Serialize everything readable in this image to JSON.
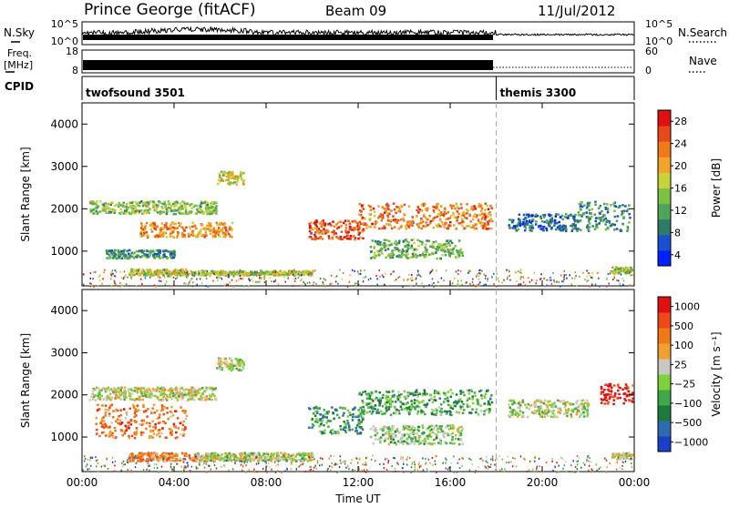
{
  "header": {
    "station": "Prince George (fitACF)",
    "beam": "Beam 09",
    "date": "11/Jul/2012"
  },
  "panels": {
    "nsky_label": "N.Sky",
    "nsky_ticks": [
      "10^5",
      "10^0"
    ],
    "nsearch_label": "N.Search",
    "nsearch_ticks": [
      "10^5",
      "10^0"
    ],
    "freq_label_1": "Freq.",
    "freq_label_2": "[MHz]",
    "freq_ticks": [
      "18",
      "8"
    ],
    "nave_label": "Nave",
    "nave_ticks": [
      "60",
      "0"
    ],
    "cpid_label": "CPID",
    "cpid_modes": [
      {
        "name": "twofsound 3501",
        "start": 0
      },
      {
        "name": "themis 3300",
        "start": 18
      }
    ]
  },
  "chart_data": [
    {
      "type": "heatmap",
      "name": "power",
      "ylabel": "Slant Range [km]",
      "xlabel": "Time UT",
      "x_ticks": [
        "00:00",
        "04:00",
        "08:00",
        "12:00",
        "16:00",
        "20:00",
        "00:00"
      ],
      "xlim": [
        0,
        24
      ],
      "ylim": [
        180,
        4500
      ],
      "y_ticks": [
        1000,
        2000,
        3000,
        4000
      ],
      "colorbar_label": "Power [dB]",
      "colorbar_ticks": [
        "28",
        "24",
        "20",
        "16",
        "12",
        "8",
        "4"
      ],
      "colors": [
        "#0022ff",
        "#1a4fd0",
        "#2f7a6a",
        "#4fa35a",
        "#7dc143",
        "#c8d23a",
        "#f2a528",
        "#f07a1a",
        "#e8481a",
        "#e01010"
      ],
      "mode_change_hour": 18,
      "echo_bands": [
        {
          "t0": 0.3,
          "t1": 5.8,
          "r0": 1900,
          "r1": 2200,
          "level": 0.45
        },
        {
          "t0": 2.5,
          "t1": 6.5,
          "r0": 1350,
          "r1": 1700,
          "level": 0.7
        },
        {
          "t0": 1.0,
          "t1": 4.0,
          "r0": 850,
          "r1": 1050,
          "level": 0.3
        },
        {
          "t0": 2.0,
          "t1": 4.5,
          "r0": 450,
          "r1": 600,
          "level": 0.55
        },
        {
          "t0": 4.0,
          "t1": 10.0,
          "r0": 450,
          "r1": 560,
          "level": 0.5
        },
        {
          "t0": 5.8,
          "t1": 7.0,
          "r0": 2600,
          "r1": 2900,
          "level": 0.55
        },
        {
          "t0": 9.8,
          "t1": 12.2,
          "r0": 1300,
          "r1": 1750,
          "level": 0.85
        },
        {
          "t0": 12.0,
          "t1": 17.8,
          "r0": 1550,
          "r1": 2150,
          "level": 0.75
        },
        {
          "t0": 12.5,
          "t1": 16.5,
          "r0": 850,
          "r1": 1300,
          "level": 0.4
        },
        {
          "t0": 18.5,
          "t1": 21.5,
          "r0": 1500,
          "r1": 1900,
          "level": 0.2
        },
        {
          "t0": 21.5,
          "t1": 23.8,
          "r0": 1500,
          "r1": 2200,
          "level": 0.3
        },
        {
          "t0": 23.0,
          "t1": 23.9,
          "r0": 500,
          "r1": 650,
          "level": 0.5
        }
      ]
    },
    {
      "type": "heatmap",
      "name": "velocity",
      "ylabel": "Slant Range [km]",
      "xlabel": "Time UT",
      "x_ticks": [
        "00:00",
        "04:00",
        "08:00",
        "12:00",
        "16:00",
        "20:00",
        "00:00"
      ],
      "xlim": [
        0,
        24
      ],
      "ylim": [
        180,
        4500
      ],
      "y_ticks": [
        1000,
        2000,
        3000,
        4000
      ],
      "colorbar_label": "Velocity [m s⁻¹]",
      "colorbar_ticks": [
        "1000",
        "500",
        "100",
        "25",
        "−25",
        "−100",
        "−500",
        "−1000"
      ],
      "colors": [
        "#1840c8",
        "#2e6ab0",
        "#1e7a3a",
        "#3ea84a",
        "#7bd23a",
        "#c8c8c0",
        "#f0a030",
        "#f07818",
        "#f04818",
        "#e01010"
      ],
      "mode_change_hour": 18,
      "echo_bands": [
        {
          "t0": 0.3,
          "t1": 5.8,
          "r0": 1900,
          "r1": 2200,
          "level": 0.55
        },
        {
          "t0": 0.5,
          "t1": 4.5,
          "r0": 1000,
          "r1": 1800,
          "level": 0.75
        },
        {
          "t0": 2.0,
          "t1": 5.0,
          "r0": 450,
          "r1": 650,
          "level": 0.72
        },
        {
          "t0": 5.0,
          "t1": 10.0,
          "r0": 450,
          "r1": 650,
          "level": 0.52
        },
        {
          "t0": 5.8,
          "t1": 7.0,
          "r0": 2600,
          "r1": 2900,
          "level": 0.52
        },
        {
          "t0": 9.8,
          "t1": 12.2,
          "r0": 1100,
          "r1": 1750,
          "level": 0.3
        },
        {
          "t0": 12.0,
          "t1": 17.8,
          "r0": 1550,
          "r1": 2150,
          "level": 0.35
        },
        {
          "t0": 12.5,
          "t1": 16.5,
          "r0": 850,
          "r1": 1300,
          "level": 0.45
        },
        {
          "t0": 18.5,
          "t1": 22.0,
          "r0": 1500,
          "r1": 1900,
          "level": 0.52
        },
        {
          "t0": 22.5,
          "t1": 23.9,
          "r0": 1800,
          "r1": 2300,
          "level": 0.95
        },
        {
          "t0": 23.0,
          "t1": 23.9,
          "r0": 500,
          "r1": 650,
          "level": 0.52
        }
      ]
    }
  ]
}
